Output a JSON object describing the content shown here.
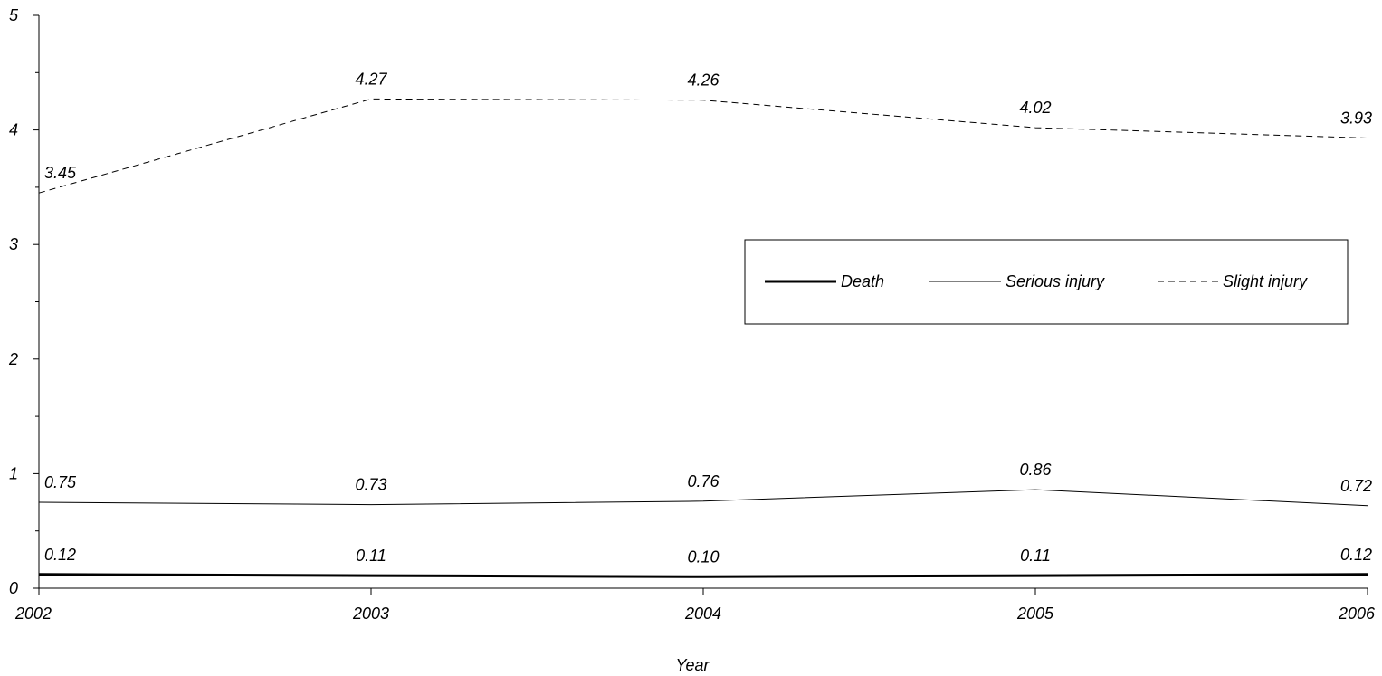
{
  "chart_data": {
    "type": "line",
    "title": "",
    "xlabel": "Year",
    "ylabel": "",
    "x": [
      "2002",
      "2003",
      "2004",
      "2005",
      "2006"
    ],
    "ylim": [
      0,
      5
    ],
    "y_ticks": [
      "0",
      "1",
      "2",
      "3",
      "4",
      "5"
    ],
    "grid": false,
    "legend_position": "center-right",
    "series": [
      {
        "name": "Death",
        "values": [
          0.12,
          0.11,
          0.1,
          0.11,
          0.12
        ],
        "labels": [
          "0.12",
          "0.11",
          "0.10",
          "0.11",
          "0.12"
        ],
        "style": "solid-thick",
        "color": "#000000"
      },
      {
        "name": "Serious injury",
        "values": [
          0.75,
          0.73,
          0.76,
          0.86,
          0.72
        ],
        "labels": [
          "0.75",
          "0.73",
          "0.76",
          "0.86",
          "0.72"
        ],
        "style": "solid-thin",
        "color": "#000000"
      },
      {
        "name": "Slight injury",
        "values": [
          3.45,
          4.27,
          4.26,
          4.02,
          3.93
        ],
        "labels": [
          "3.45",
          "4.27",
          "4.26",
          "4.02",
          "3.93"
        ],
        "style": "dashed",
        "color": "#000000"
      }
    ]
  }
}
